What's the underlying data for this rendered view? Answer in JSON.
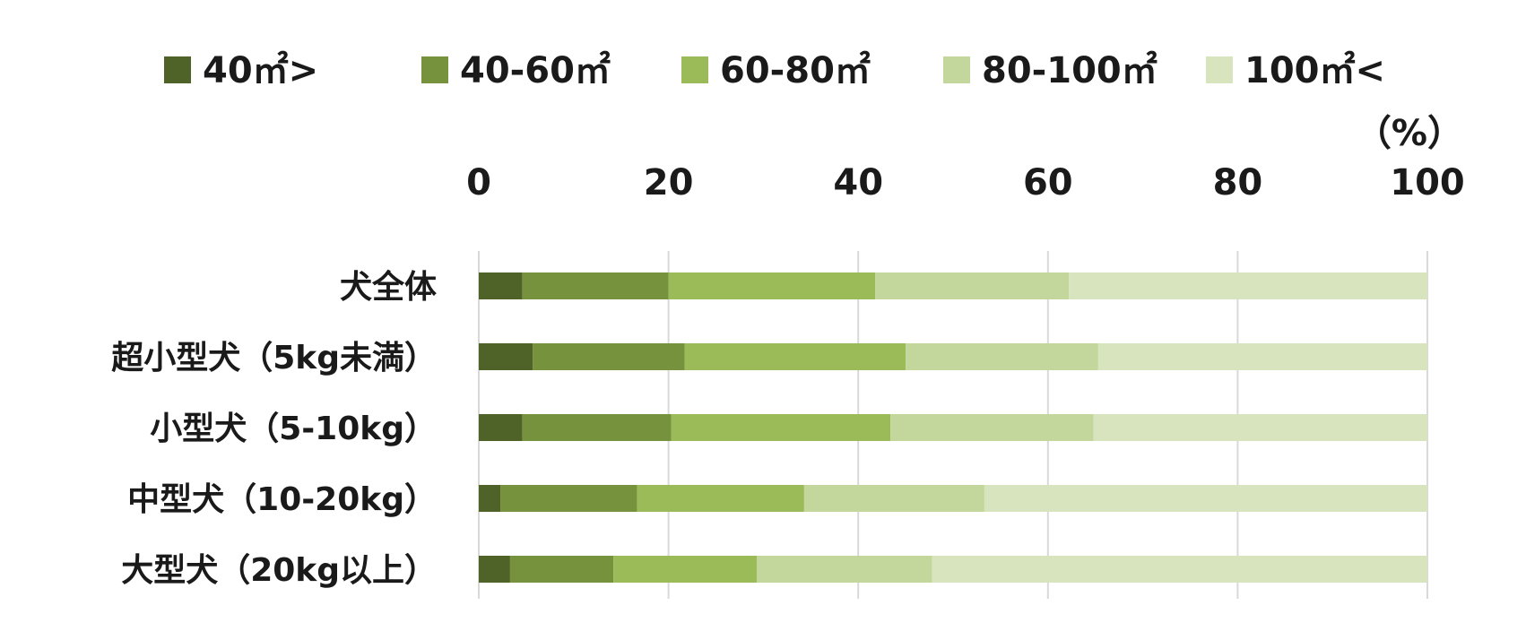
{
  "chart_data": {
    "type": "bar",
    "orientation": "horizontal",
    "stacked": true,
    "unit_label": "（%）",
    "xlim": [
      0,
      100
    ],
    "x_ticks": [
      "0",
      "20",
      "40",
      "60",
      "80",
      "100"
    ],
    "x_axis_position": "top",
    "grid": true,
    "legend_position": "top",
    "categories": [
      "犬全体",
      "超小型犬（5kg未満）",
      "小型犬（5-10kg）",
      "中型犬（10-20kg）",
      "大型犬（20kg以上）"
    ],
    "series": [
      {
        "name": "40㎡>",
        "color": "#4f6228",
        "values": [
          4.6,
          5.7,
          4.6,
          2.3,
          3.3
        ]
      },
      {
        "name": "40-60㎡",
        "color": "#76923c",
        "values": [
          15.4,
          16.0,
          15.7,
          14.4,
          10.9
        ]
      },
      {
        "name": "60-80㎡",
        "color": "#9bbb59",
        "values": [
          21.8,
          23.3,
          23.1,
          17.6,
          15.1
        ]
      },
      {
        "name": "80-100㎡",
        "color": "#c3d69b",
        "values": [
          20.4,
          20.3,
          21.4,
          19.0,
          18.5
        ]
      },
      {
        "name": "100㎡<",
        "color": "#d7e4bd",
        "values": [
          37.8,
          34.7,
          35.2,
          46.7,
          52.2
        ]
      }
    ]
  }
}
